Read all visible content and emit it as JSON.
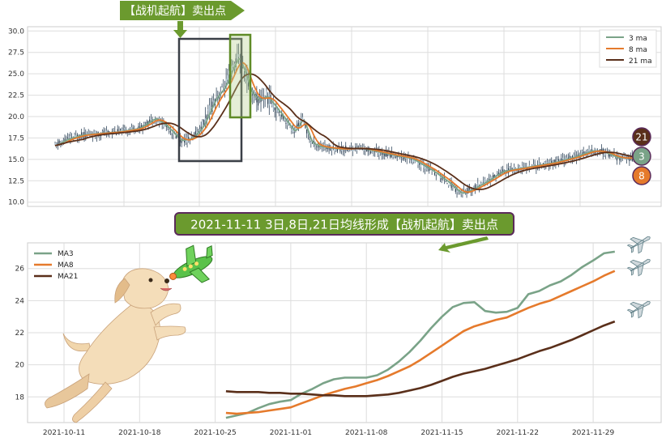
{
  "chart_data": [
    {
      "type": "line",
      "ylim": [
        9.5,
        30.5
      ],
      "yticks": [
        "10.0",
        "12.5",
        "15.0",
        "17.5",
        "20.0",
        "22.5",
        "25.0",
        "27.5",
        "30.0"
      ],
      "grid": true,
      "legend_position": "top-right",
      "series": [
        {
          "name": "3 ma",
          "color": "#7aa388"
        },
        {
          "name": "8 ma",
          "color": "#e57a2c"
        },
        {
          "name": "21 ma",
          "color": "#5a2f1a"
        }
      ],
      "annotations": {
        "top_arrow_text": "【战机起航】卖出点",
        "badges": [
          {
            "label": "21",
            "color": "#5a2f1a"
          },
          {
            "label": "3",
            "color": "#7aa388"
          },
          {
            "label": "8",
            "color": "#e57a2c"
          }
        ]
      }
    },
    {
      "type": "line",
      "title": "2021-11-11 3日,8日,21日均线形成【战机起航】卖出点",
      "xticks": [
        "2021-10-11",
        "2021-10-18",
        "2021-10-25",
        "2021-11-01",
        "2021-11-08",
        "2021-11-15",
        "2021-11-22",
        "2021-11-29"
      ],
      "ylim": [
        16.4,
        27.6
      ],
      "yticks": [
        "18",
        "20",
        "22",
        "24",
        "26"
      ],
      "grid": true,
      "legend_position": "top-left",
      "x": [
        "2021-10-26",
        "2021-10-27",
        "2021-10-28",
        "2021-10-29",
        "2021-10-30",
        "2021-10-31",
        "2021-11-01",
        "2021-11-02",
        "2021-11-03",
        "2021-11-04",
        "2021-11-05",
        "2021-11-06",
        "2021-11-07",
        "2021-11-08",
        "2021-11-09",
        "2021-11-10",
        "2021-11-11",
        "2021-11-12",
        "2021-11-13",
        "2021-11-14",
        "2021-11-15",
        "2021-11-16",
        "2021-11-17",
        "2021-11-18",
        "2021-11-19",
        "2021-11-20",
        "2021-11-21",
        "2021-11-22",
        "2021-11-23",
        "2021-11-24",
        "2021-11-25",
        "2021-11-26",
        "2021-11-27",
        "2021-11-28",
        "2021-11-29",
        "2021-11-30",
        "2021-12-01"
      ],
      "series": [
        {
          "name": "MA3",
          "color": "#7aa388",
          "values": [
            16.7,
            16.85,
            17.0,
            17.3,
            17.55,
            17.7,
            17.8,
            18.2,
            18.5,
            18.85,
            19.1,
            19.2,
            19.2,
            19.2,
            19.35,
            19.7,
            20.2,
            20.8,
            21.5,
            22.3,
            23.0,
            23.6,
            23.85,
            23.9,
            23.35,
            23.25,
            23.3,
            23.55,
            24.4,
            24.6,
            24.95,
            25.2,
            25.6,
            26.1,
            26.5,
            26.95,
            27.05
          ]
        },
        {
          "name": "MA8",
          "color": "#e57a2c",
          "values": [
            17.0,
            16.95,
            17.0,
            17.05,
            17.15,
            17.25,
            17.35,
            17.6,
            17.85,
            18.1,
            18.3,
            18.5,
            18.65,
            18.85,
            19.05,
            19.3,
            19.6,
            19.9,
            20.3,
            20.75,
            21.2,
            21.65,
            22.1,
            22.4,
            22.6,
            22.8,
            22.95,
            23.25,
            23.55,
            23.8,
            24.0,
            24.3,
            24.6,
            24.9,
            25.2,
            25.55,
            25.85
          ]
        },
        {
          "name": "MA21",
          "color": "#5a2f1a",
          "values": [
            18.35,
            18.3,
            18.3,
            18.3,
            18.25,
            18.25,
            18.2,
            18.2,
            18.15,
            18.1,
            18.1,
            18.05,
            18.05,
            18.05,
            18.1,
            18.15,
            18.25,
            18.4,
            18.55,
            18.75,
            19.0,
            19.25,
            19.45,
            19.6,
            19.75,
            19.95,
            20.15,
            20.35,
            20.6,
            20.85,
            21.05,
            21.3,
            21.55,
            21.85,
            22.15,
            22.45,
            22.7
          ]
        }
      ]
    }
  ]
}
